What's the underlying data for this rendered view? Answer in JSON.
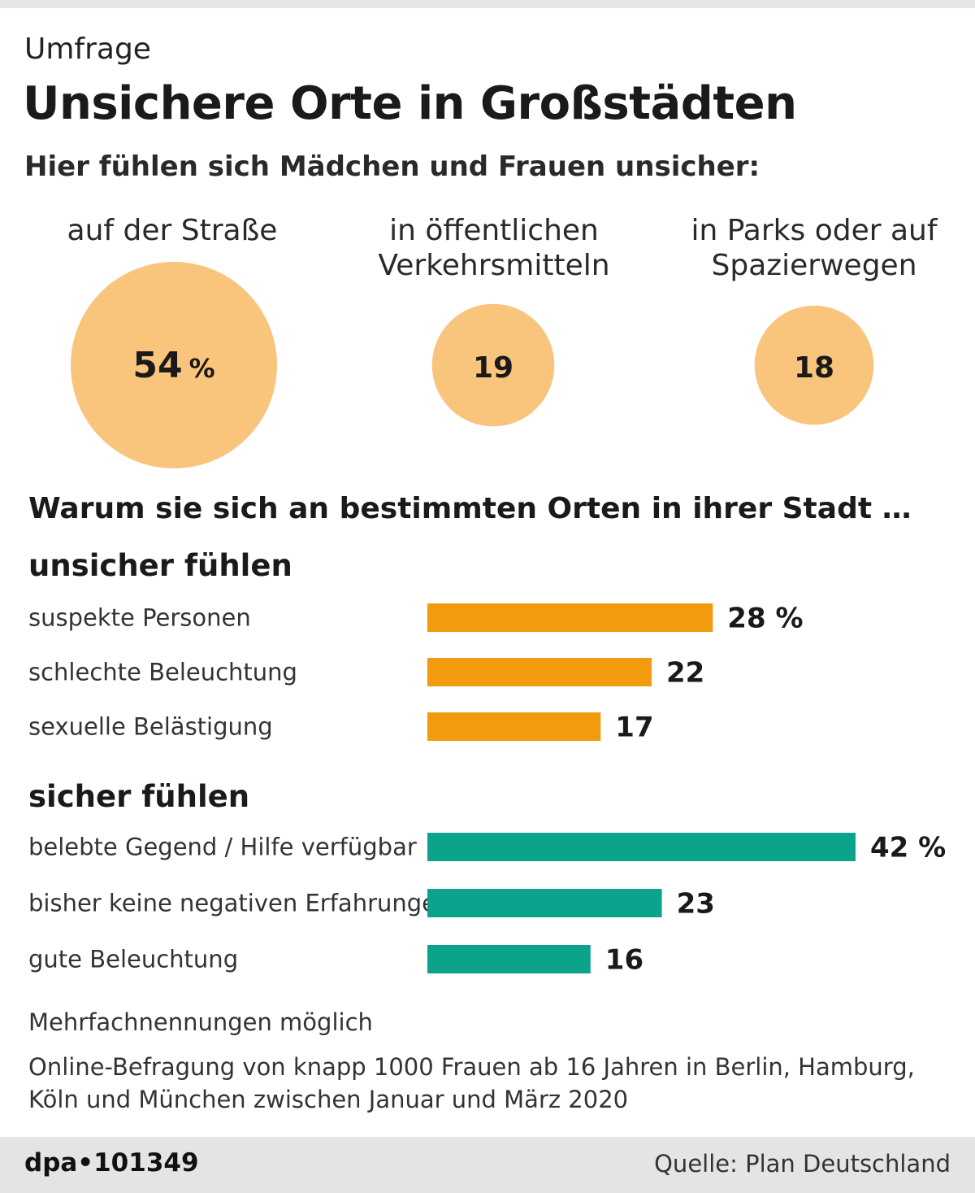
{
  "header": {
    "kicker": "Umfrage",
    "title": "Unsichere Orte in Großstädten",
    "subtitle": "Hier fühlen sich Mädchen und Frauen unsicher:"
  },
  "places": [
    {
      "label": "auf der Straße",
      "value_label": "54",
      "unit": "%"
    },
    {
      "label": "in öffentlichen\nVerkehrsmitteln",
      "value_label": "19",
      "unit": ""
    },
    {
      "label": "in Parks oder auf\nSpazierwegen",
      "value_label": "18",
      "unit": ""
    }
  ],
  "reasons": {
    "heading": "Warum sie sich an bestimmten Orten in ihrer Stadt …",
    "unsafe_title": "unsicher fühlen",
    "safe_title": "sicher fühlen"
  },
  "colors": {
    "bubble": "#f9c47c",
    "unsafe_bar": "#f39b0e",
    "safe_bar": "#0ca38c"
  },
  "chart_data": [
    {
      "type": "bubble",
      "categories": [
        "auf der Straße",
        "in öffentlichen Verkehrsmitteln",
        "in Parks oder auf Spazierwegen"
      ],
      "values": [
        54,
        19,
        18
      ],
      "unit": "%"
    },
    {
      "type": "bar",
      "orientation": "horizontal",
      "title": "unsicher fühlen",
      "categories": [
        "suspekte Personen",
        "schlechte Beleuchtung",
        "sexuelle Belästigung"
      ],
      "values": [
        28,
        22,
        17
      ],
      "value_labels": [
        "28 %",
        "22",
        "17"
      ],
      "xlim": [
        0,
        42
      ]
    },
    {
      "type": "bar",
      "orientation": "horizontal",
      "title": "sicher fühlen",
      "categories": [
        "belebte Gegend / Hilfe verfügbar",
        "bisher keine negativen Erfahrungen",
        "gute Beleuchtung"
      ],
      "values": [
        42,
        23,
        16
      ],
      "value_labels": [
        "42 %",
        "23",
        "16"
      ],
      "xlim": [
        0,
        42
      ]
    }
  ],
  "notes": {
    "multiple": "Mehrfachnennungen möglich",
    "method": "Online-Befragung von knapp 1000 Frauen ab 16 Jahren in Berlin, Hamburg, Köln und München zwischen Januar und März 2020"
  },
  "footer": {
    "id": "dpa•101349",
    "source": "Quelle: Plan Deutschland"
  }
}
